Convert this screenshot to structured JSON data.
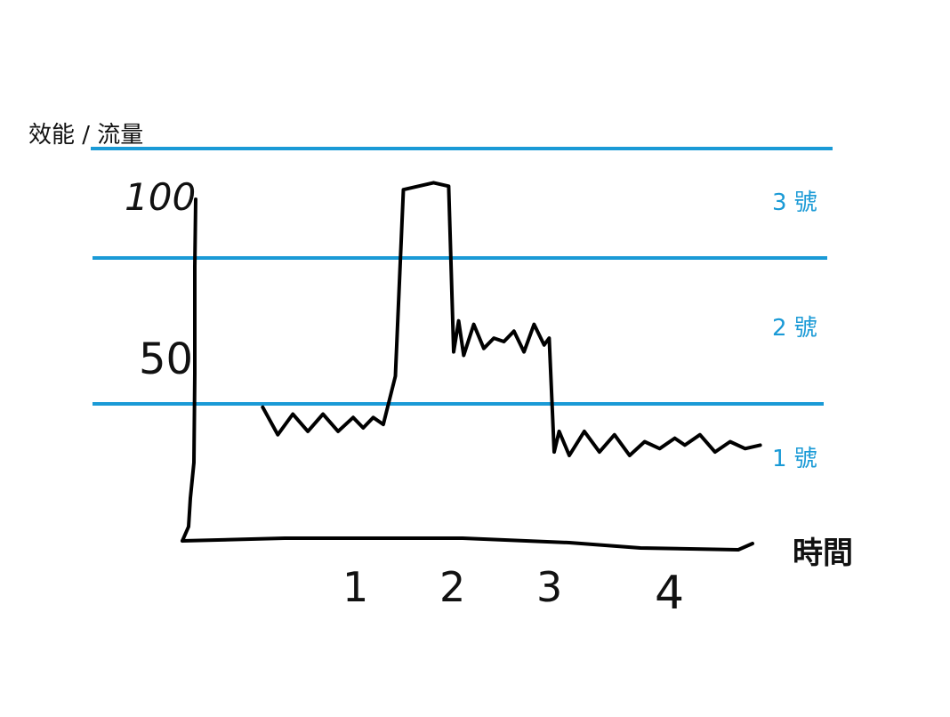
{
  "chart_data": {
    "type": "line",
    "ylabel": "效能 / 流量",
    "xlabel": "時間",
    "x_ticks": [
      "1",
      "2",
      "3",
      "4"
    ],
    "y_ticks": [
      "100",
      "50"
    ],
    "ylim": [
      0,
      100
    ],
    "zones": [
      {
        "label": "3 號",
        "y_from": 75,
        "y_to": 100,
        "boundary": 100
      },
      {
        "label": "2 號",
        "y_from": 30,
        "y_to": 75,
        "boundary": 75
      },
      {
        "label": "1 號",
        "y_from": 0,
        "y_to": 30,
        "boundary": 30
      }
    ],
    "line_color": "#1a9ad6",
    "series": [
      {
        "color": "#000000",
        "x": [
          0.1,
          0.25,
          0.4,
          0.55,
          0.7,
          0.85,
          1.0,
          1.1,
          1.2,
          1.3,
          1.42,
          1.5,
          1.8,
          1.95,
          2.0,
          2.05,
          2.1,
          2.2,
          2.3,
          2.4,
          2.5,
          2.6,
          2.7,
          2.8,
          2.9,
          2.95,
          3.0,
          3.05,
          3.15,
          3.3,
          3.45,
          3.6,
          3.75,
          3.9,
          4.05,
          4.2,
          4.3,
          4.45,
          4.6,
          4.75,
          4.9,
          5.05
        ],
        "y": [
          31,
          23,
          29,
          24,
          29,
          24,
          28,
          25,
          28,
          26,
          40,
          94,
          96,
          95,
          47,
          56,
          46,
          55,
          48,
          51,
          50,
          53,
          47,
          55,
          49,
          51,
          18,
          24,
          17,
          24,
          18,
          23,
          17,
          21,
          19,
          22,
          20,
          23,
          18,
          21,
          19,
          20
        ]
      }
    ]
  }
}
